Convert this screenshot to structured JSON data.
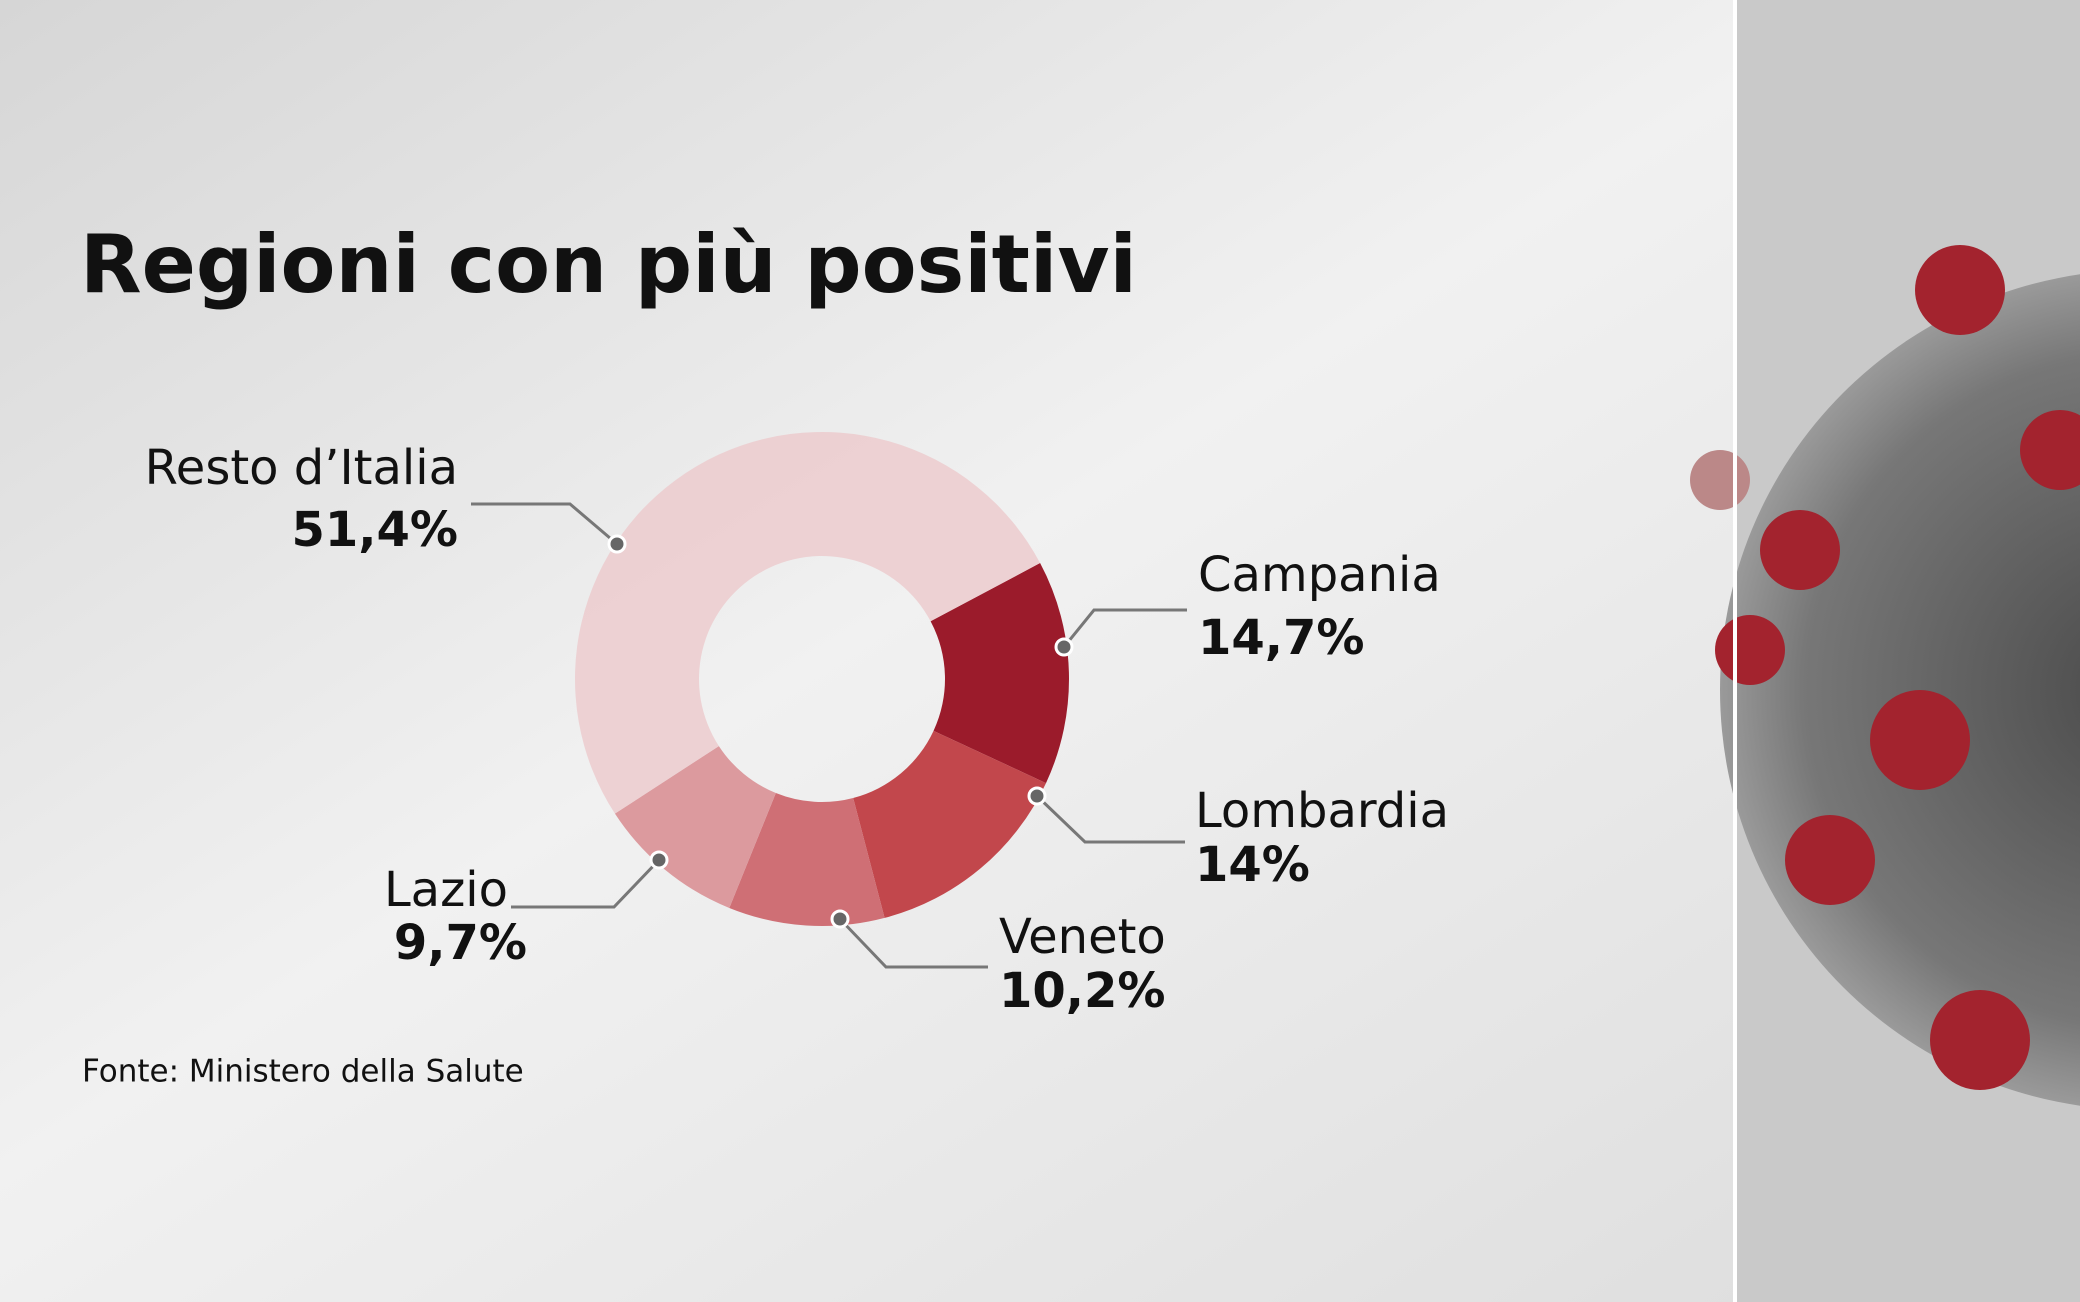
{
  "chart_data": {
    "type": "donut",
    "title": "Regioni con più positivi",
    "categories": [
      "Campania",
      "Lombardia",
      "Veneto",
      "Lazio",
      "Resto d’Italia"
    ],
    "values": [
      14.7,
      14,
      10.2,
      9.7,
      51.4
    ],
    "value_labels": [
      "14,7%",
      "14%",
      "10,2%",
      "9,7%",
      "51,4%"
    ],
    "colors": [
      "#9b1b2b",
      "#c2474c",
      "#cf6f75",
      "#dc9a9e",
      "#eccbce"
    ],
    "source": "Fonte: Ministero della Salute"
  }
}
